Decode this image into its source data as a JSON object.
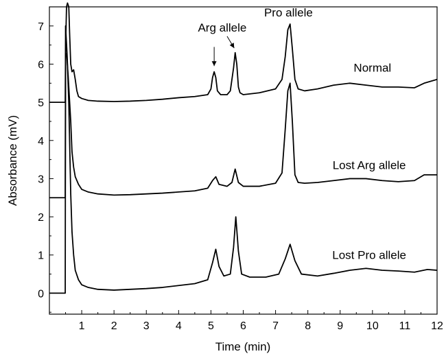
{
  "chart_data": {
    "type": "line",
    "title": "",
    "xlabel": "Time (min)",
    "ylabel": "Absorbance (mV)",
    "xlim": [
      0,
      12
    ],
    "ylim": [
      -0.55,
      7.5
    ],
    "x_ticks": [
      1,
      2,
      3,
      4,
      5,
      6,
      7,
      8,
      9,
      10,
      11,
      12
    ],
    "y_ticks": [
      0,
      1,
      2,
      3,
      4,
      5,
      6,
      7
    ],
    "grid": false,
    "legend": "none",
    "line_color": "#000000",
    "series": [
      {
        "label": "Normal",
        "x": [
          0,
          0.49,
          0.5,
          0.53,
          0.56,
          0.6,
          0.63,
          0.66,
          0.7,
          0.75,
          0.8,
          0.85,
          0.9,
          1.0,
          1.2,
          1.5,
          2.0,
          2.5,
          3.0,
          3.5,
          4.0,
          4.5,
          4.9,
          5.0,
          5.05,
          5.1,
          5.15,
          5.2,
          5.3,
          5.5,
          5.6,
          5.7,
          5.75,
          5.8,
          5.85,
          5.9,
          6.0,
          6.5,
          7.0,
          7.2,
          7.3,
          7.38,
          7.45,
          7.52,
          7.6,
          7.7,
          7.9,
          8.3,
          8.8,
          9.3,
          9.8,
          10.3,
          10.8,
          11.3,
          11.6,
          12.0
        ],
        "y": [
          5.0,
          5.0,
          6.4,
          7.5,
          7.6,
          7.5,
          6.7,
          6.0,
          5.8,
          5.85,
          5.6,
          5.3,
          5.15,
          5.1,
          5.05,
          5.03,
          5.02,
          5.03,
          5.05,
          5.08,
          5.12,
          5.15,
          5.2,
          5.35,
          5.65,
          5.8,
          5.65,
          5.3,
          5.2,
          5.2,
          5.3,
          5.9,
          6.3,
          6.0,
          5.4,
          5.25,
          5.2,
          5.25,
          5.35,
          5.6,
          6.2,
          6.9,
          7.05,
          6.4,
          5.6,
          5.35,
          5.3,
          5.35,
          5.45,
          5.5,
          5.45,
          5.4,
          5.4,
          5.38,
          5.5,
          5.6
        ]
      },
      {
        "label": "Lost Arg allele",
        "x": [
          0,
          0.49,
          0.5,
          0.54,
          0.58,
          0.62,
          0.66,
          0.7,
          0.75,
          0.8,
          0.9,
          1.0,
          1.2,
          1.5,
          2.0,
          2.5,
          3.0,
          3.5,
          4.0,
          4.5,
          4.9,
          5.05,
          5.15,
          5.25,
          5.5,
          5.65,
          5.75,
          5.85,
          6.0,
          6.5,
          7.0,
          7.2,
          7.3,
          7.38,
          7.45,
          7.52,
          7.6,
          7.7,
          7.9,
          8.3,
          8.8,
          9.3,
          9.8,
          10.3,
          10.8,
          11.3,
          11.6,
          12.0
        ],
        "y": [
          2.5,
          2.5,
          6.3,
          6.2,
          5.7,
          5.1,
          4.5,
          3.7,
          3.3,
          3.05,
          2.85,
          2.72,
          2.65,
          2.6,
          2.57,
          2.58,
          2.6,
          2.62,
          2.65,
          2.68,
          2.75,
          2.95,
          3.05,
          2.85,
          2.8,
          2.9,
          3.25,
          2.9,
          2.8,
          2.8,
          2.88,
          3.15,
          4.3,
          5.3,
          5.5,
          4.5,
          3.1,
          2.9,
          2.88,
          2.9,
          2.95,
          3.0,
          3.0,
          2.95,
          2.92,
          2.95,
          3.1,
          3.1
        ]
      },
      {
        "label": "Lost Pro allele",
        "x": [
          0,
          0.49,
          0.5,
          0.55,
          0.6,
          0.63,
          0.66,
          0.7,
          0.75,
          0.8,
          0.9,
          1.0,
          1.2,
          1.5,
          2.0,
          2.5,
          3.0,
          3.5,
          4.0,
          4.5,
          4.9,
          5.05,
          5.15,
          5.25,
          5.4,
          5.6,
          5.7,
          5.77,
          5.85,
          5.95,
          6.2,
          6.7,
          7.1,
          7.3,
          7.45,
          7.6,
          7.8,
          8.3,
          8.8,
          9.3,
          9.8,
          10.3,
          10.8,
          11.3,
          11.7,
          12.0
        ],
        "y": [
          0.0,
          0.0,
          7.0,
          6.2,
          5.0,
          3.8,
          2.6,
          1.6,
          1.0,
          0.6,
          0.35,
          0.22,
          0.15,
          0.1,
          0.08,
          0.1,
          0.12,
          0.15,
          0.2,
          0.25,
          0.35,
          0.8,
          1.15,
          0.7,
          0.45,
          0.5,
          1.2,
          2.0,
          1.1,
          0.5,
          0.42,
          0.42,
          0.5,
          0.9,
          1.28,
          0.85,
          0.5,
          0.45,
          0.52,
          0.6,
          0.65,
          0.6,
          0.58,
          0.55,
          0.62,
          0.6
        ]
      }
    ],
    "annotations": [
      {
        "text": "Pro allele",
        "x": 7.4,
        "y": 7.25
      },
      {
        "text": "Arg allele",
        "x": 5.35,
        "y": 6.85
      },
      {
        "text": "Normal",
        "x": 10.0,
        "y": 5.8
      },
      {
        "text": "Lost Arg allele",
        "x": 9.9,
        "y": 3.25
      },
      {
        "text": "Lost Pro allele",
        "x": 9.9,
        "y": 0.9
      }
    ],
    "arrows": [
      {
        "from": [
          5.1,
          6.45
        ],
        "to": [
          5.1,
          5.95
        ]
      },
      {
        "from": [
          5.5,
          6.73
        ],
        "to": [
          5.72,
          6.42
        ]
      }
    ]
  }
}
